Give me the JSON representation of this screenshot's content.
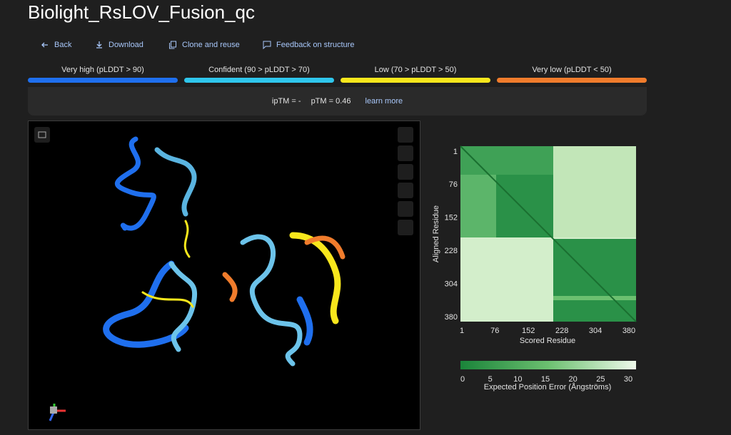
{
  "header": {
    "title": "Biolight_RsLOV_Fusion_qc"
  },
  "actions": [
    "Back",
    "Download",
    "Clone and reuse",
    "Feedback on structure"
  ],
  "plddt_legend": [
    {
      "label": "Very high (pLDDT > 90)",
      "color": "#1f6fee"
    },
    {
      "label": "Confident (90 > pLDDT > 70)",
      "color": "#2fc6ec"
    },
    {
      "label": "Low (70 > pLDDT > 50)",
      "color": "#f8e71c"
    },
    {
      "label": "Very low (pLDDT < 50)",
      "color": "#f07c2c"
    }
  ],
  "metrics": {
    "iptm": "ipTM = -",
    "ptm": "pTM = 0.46",
    "link": "learn more"
  },
  "pae": {
    "y_label": "Aligned Residue",
    "x_label": "Scored Residue",
    "ticks": [
      1,
      76,
      152,
      228,
      304,
      380
    ],
    "colorbar_ticks": [
      0,
      5,
      10,
      15,
      20,
      25,
      30
    ],
    "colorbar_label": "Expected Position Error (Ångströms)"
  }
}
